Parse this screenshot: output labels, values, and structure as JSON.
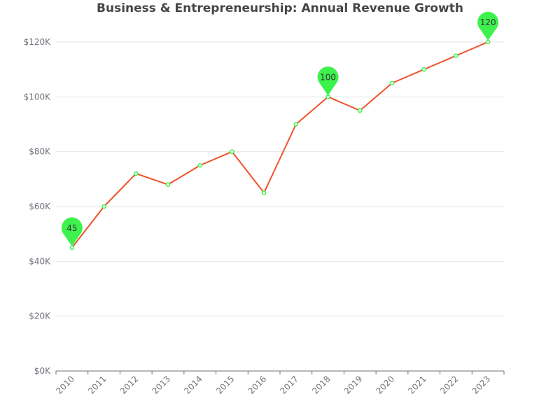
{
  "chart_data": {
    "type": "line",
    "title": "Business & Entrepreneurship: Annual Revenue Growth",
    "xlabel": "",
    "ylabel": "",
    "categories": [
      "2010",
      "2011",
      "2012",
      "2013",
      "2014",
      "2015",
      "2016",
      "2017",
      "2018",
      "2019",
      "2020",
      "2021",
      "2022",
      "2023"
    ],
    "series": [
      {
        "values": [
          45,
          60,
          72,
          68,
          75,
          80,
          65,
          90,
          100,
          95,
          105,
          110,
          115,
          120
        ],
        "line_color": "#f0522b",
        "marker_color": "#3df24d"
      }
    ],
    "ylim": [
      0,
      120
    ],
    "y_ticks": [
      0,
      20,
      40,
      60,
      80,
      100,
      120
    ],
    "y_tick_labels": [
      "$0K",
      "$20K",
      "$40K",
      "$60K",
      "$80K",
      "$100K",
      "$120K"
    ],
    "grid": true,
    "pin_annotations": [
      {
        "category": "2010",
        "value": 45,
        "label": "45"
      },
      {
        "category": "2018",
        "value": 100,
        "label": "100"
      },
      {
        "category": "2023",
        "value": 120,
        "label": "120"
      }
    ],
    "pin_color": "#3df24d"
  }
}
